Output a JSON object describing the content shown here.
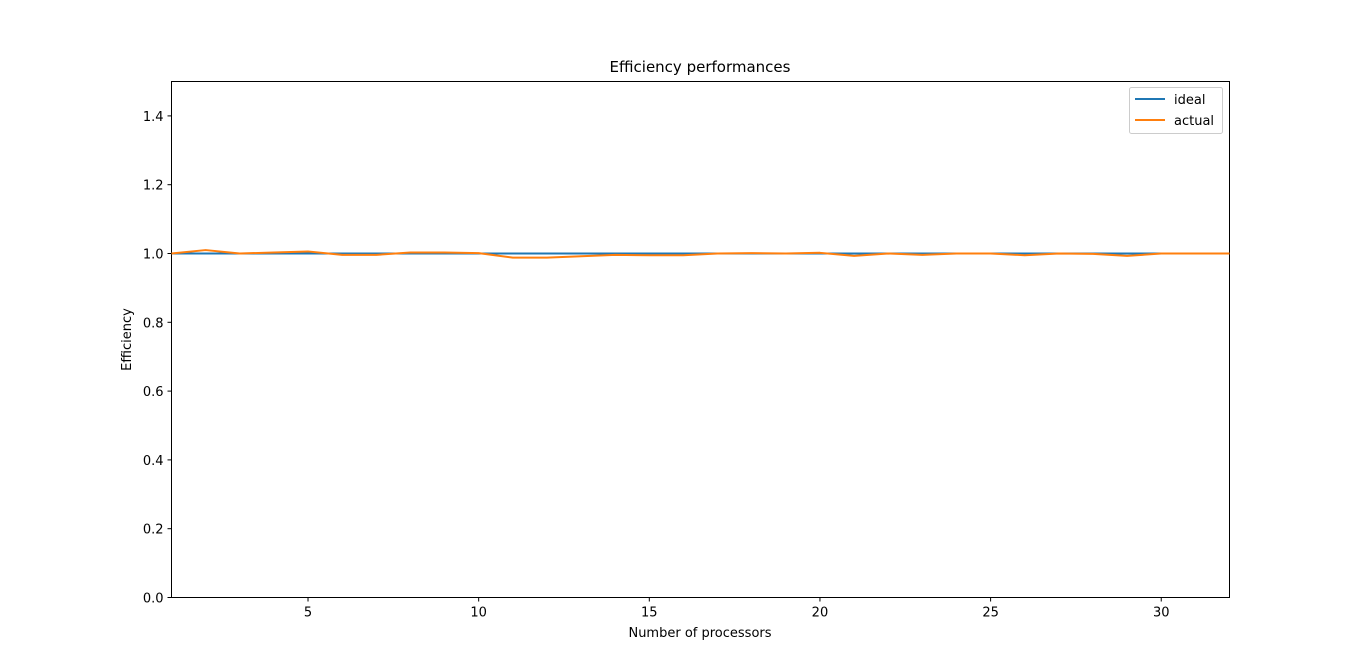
{
  "chart_data": {
    "type": "line",
    "title": "Efficiency performances",
    "xlabel": "Number of processors",
    "ylabel": "Efficiency",
    "xlim": [
      1,
      32
    ],
    "ylim": [
      0.0,
      1.5
    ],
    "x_ticks": [
      5,
      10,
      15,
      20,
      25,
      30
    ],
    "x_tick_labels": [
      "5",
      "10",
      "15",
      "20",
      "25",
      "30"
    ],
    "y_ticks": [
      0.0,
      0.2,
      0.4,
      0.6,
      0.8,
      1.0,
      1.2,
      1.4
    ],
    "y_tick_labels": [
      "0.0",
      "0.2",
      "0.4",
      "0.6",
      "0.8",
      "1.0",
      "1.2",
      "1.4"
    ],
    "grid": false,
    "legend_position": "top-right",
    "x": [
      1,
      2,
      3,
      4,
      5,
      6,
      7,
      8,
      9,
      10,
      11,
      12,
      13,
      14,
      15,
      16,
      17,
      18,
      19,
      20,
      21,
      22,
      23,
      24,
      25,
      26,
      27,
      28,
      29,
      30,
      31,
      32
    ],
    "series": [
      {
        "name": "ideal",
        "color": "#1f77b4",
        "values": [
          1.0,
          1.0,
          1.0,
          1.0,
          1.0,
          1.0,
          1.0,
          1.0,
          1.0,
          1.0,
          1.0,
          1.0,
          1.0,
          1.0,
          1.0,
          1.0,
          1.0,
          1.0,
          1.0,
          1.0,
          1.0,
          1.0,
          1.0,
          1.0,
          1.0,
          1.0,
          1.0,
          1.0,
          1.0,
          1.0,
          1.0,
          1.0
        ]
      },
      {
        "name": "actual",
        "color": "#ff7f0e",
        "values": [
          1.0,
          1.01,
          1.0,
          1.003,
          1.006,
          0.996,
          0.996,
          1.003,
          1.003,
          1.001,
          0.988,
          0.988,
          0.992,
          0.996,
          0.995,
          0.995,
          1.0,
          1.001,
          1.0,
          1.002,
          0.993,
          1.0,
          0.996,
          1.0,
          1.0,
          0.995,
          1.0,
          0.999,
          0.993,
          1.0,
          1.0,
          1.0
        ]
      }
    ]
  }
}
